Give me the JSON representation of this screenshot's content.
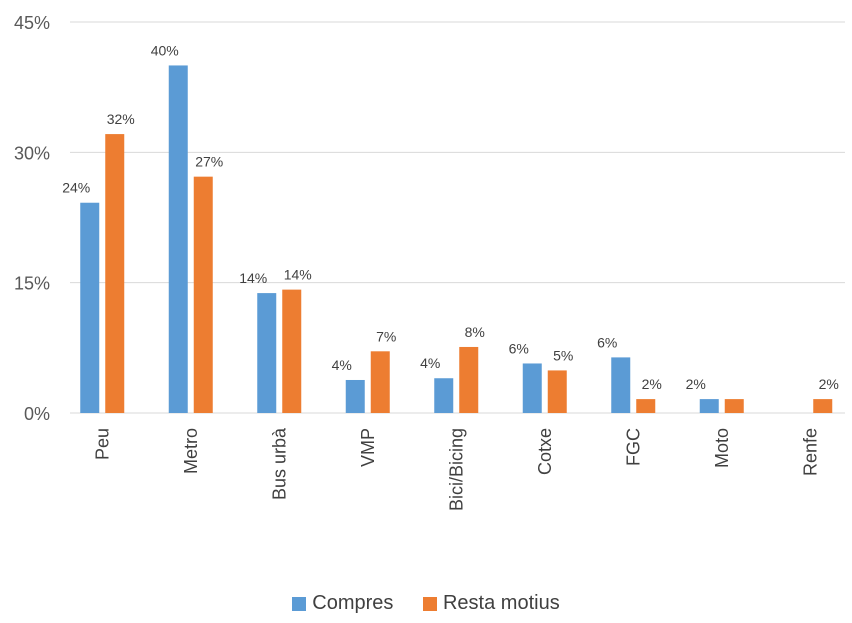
{
  "chart_data": {
    "type": "bar",
    "categories": [
      "Peu",
      "Metro",
      "Bus urbà",
      "VMP",
      "Bici/Bicing",
      "Cotxe",
      "FGC",
      "Moto",
      "Renfe"
    ],
    "series": [
      {
        "name": "Compres",
        "color": "#5B9BD5",
        "values": [
          24.2,
          40.0,
          13.8,
          3.8,
          4.0,
          5.7,
          6.4,
          1.6,
          0
        ],
        "labels": [
          "24%",
          "40%",
          "14%",
          "4%",
          "4%",
          "6%",
          "6%",
          "2%",
          ""
        ]
      },
      {
        "name": "Resta motius",
        "color": "#ED7D31",
        "values": [
          32.1,
          27.2,
          14.2,
          7.1,
          7.6,
          4.9,
          1.6,
          1.6,
          1.6
        ],
        "labels": [
          "32%",
          "27%",
          "14%",
          "7%",
          "8%",
          "5%",
          "2%",
          "",
          "2%"
        ]
      }
    ],
    "ylim": [
      0,
      45
    ],
    "yticks": [
      0,
      15,
      30,
      45
    ],
    "ytick_labels": [
      "0%",
      "15%",
      "30%",
      "45%"
    ],
    "grid": true,
    "legend_position": "bottom",
    "title": "",
    "xlabel": "",
    "ylabel": ""
  }
}
